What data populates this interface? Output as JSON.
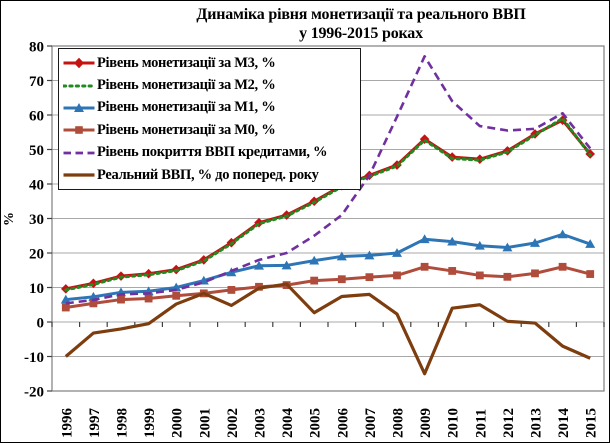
{
  "chart_data": {
    "type": "line",
    "title": "Динаміка рівня монетизації та реального ВВП",
    "subtitle": "у 1996-2015 роках",
    "ylabel": "%",
    "xlabel": "",
    "ylim": [
      -20,
      80
    ],
    "yticks": [
      80,
      70,
      60,
      50,
      40,
      30,
      20,
      10,
      0,
      -10,
      -20
    ],
    "grid": true,
    "legend_position": "top-left",
    "categories": [
      "1996",
      "1997",
      "1998",
      "1999",
      "2000",
      "2001",
      "2002",
      "2003",
      "2004",
      "2005",
      "2006",
      "2007",
      "2008",
      "2009",
      "2010",
      "2011",
      "2012",
      "2013",
      "2014",
      "2015"
    ],
    "series": [
      {
        "key": "m3",
        "name": "Рівень монетизації за М3, %",
        "color": "#c51212",
        "style": "solid",
        "marker": "diamond",
        "values": [
          9.6,
          11.2,
          13.3,
          14.0,
          15.2,
          18.0,
          23.0,
          28.8,
          31.0,
          35.0,
          39.5,
          42.5,
          45.5,
          53.0,
          47.8,
          47.2,
          49.6,
          54.5,
          58.5,
          48.7
        ]
      },
      {
        "key": "m2",
        "name": "Рівень монетизації за М2, %",
        "color": "#218a21",
        "style": "dotted",
        "marker": "none",
        "values": [
          9.3,
          10.9,
          13.0,
          13.7,
          14.9,
          17.7,
          22.7,
          28.5,
          30.7,
          34.7,
          39.2,
          42.2,
          45.2,
          52.7,
          47.4,
          46.9,
          49.3,
          54.2,
          59.0,
          48.4
        ]
      },
      {
        "key": "m1",
        "name": "Рівень монетизації за М1, %",
        "color": "#2e75b6",
        "style": "solid",
        "marker": "triangle",
        "values": [
          6.5,
          7.3,
          8.6,
          8.9,
          10.0,
          12.0,
          14.4,
          16.3,
          16.4,
          17.8,
          19.0,
          19.3,
          20.0,
          24.0,
          23.3,
          22.1,
          21.6,
          22.9,
          25.4,
          22.6
        ]
      },
      {
        "key": "m0",
        "name": "Рівень монетизації за М0, %",
        "color": "#af4c3b",
        "style": "solid",
        "marker": "square",
        "values": [
          4.2,
          5.4,
          6.5,
          6.8,
          7.6,
          8.3,
          9.3,
          10.2,
          10.7,
          12.0,
          12.4,
          13.0,
          13.5,
          16.0,
          14.8,
          13.5,
          13.1,
          14.1,
          16.0,
          13.9
        ]
      },
      {
        "key": "credit",
        "name": "Рівень покриття ВВП кредитами, %",
        "color": "#7030a0",
        "style": "dashed",
        "marker": "none",
        "values": [
          5.4,
          6.4,
          8.0,
          8.3,
          9.3,
          11.5,
          14.8,
          18.0,
          20.0,
          25.0,
          31.0,
          42.5,
          59.5,
          77.0,
          64.0,
          56.8,
          55.5,
          56.0,
          60.5,
          50.3
        ]
      },
      {
        "key": "gdp",
        "name": "Реальний ВВП, % до поперед. року",
        "color": "#7e3d0f",
        "style": "solid",
        "marker": "none",
        "values": [
          -10.0,
          -3.2,
          -2.0,
          -0.5,
          5.2,
          8.3,
          4.8,
          9.8,
          11.0,
          2.7,
          7.4,
          8.0,
          2.3,
          -15.0,
          4.0,
          5.0,
          0.2,
          -0.3,
          -7.0,
          -10.5
        ]
      }
    ],
    "colors": {
      "gridline": "#a8a8a8",
      "plot_border": "#7f7f7f",
      "text": "#000000"
    }
  }
}
